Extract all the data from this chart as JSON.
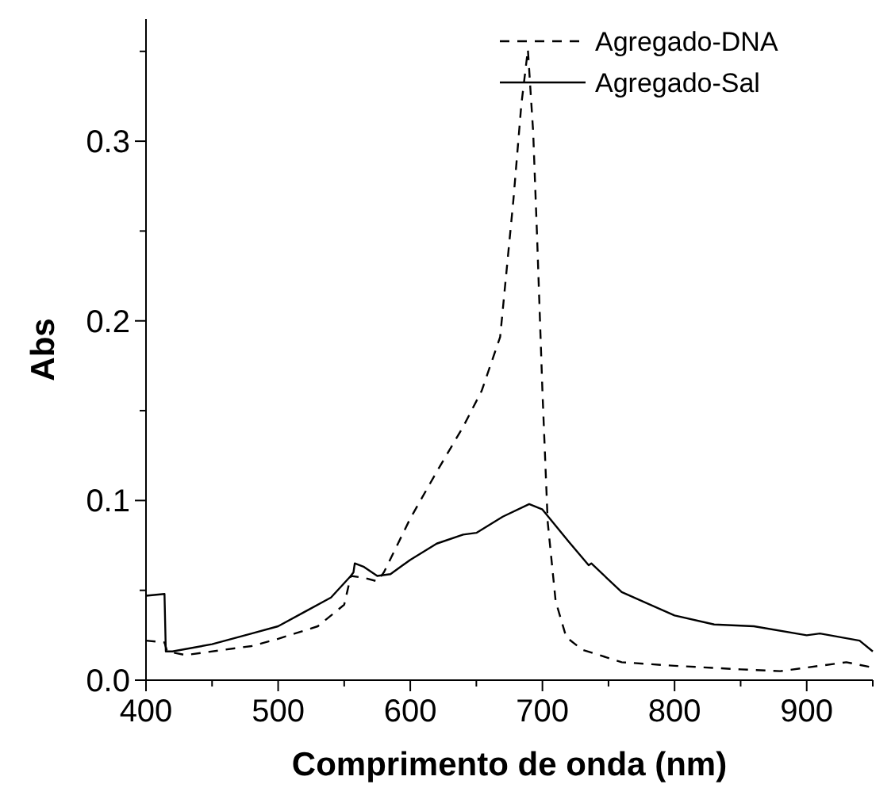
{
  "chart_data": {
    "type": "line",
    "xlabel": "Comprimento de onda (nm)",
    "ylabel": "Abs",
    "xlim": [
      400,
      950
    ],
    "ylim": [
      0,
      0.368
    ],
    "xticks": [
      400,
      {
        "value": 450,
        "label": null
      },
      500,
      {
        "value": 550,
        "label": null
      },
      600,
      {
        "value": 650,
        "label": null
      },
      700,
      {
        "value": 750,
        "label": null
      },
      800,
      {
        "value": 850,
        "label": null
      },
      900,
      {
        "value": 950,
        "label": null
      }
    ],
    "yticks": [
      "0.0",
      {
        "value": 0.05,
        "label": null
      },
      {
        "value": 0.1,
        "label": "0.1"
      },
      {
        "value": 0.15,
        "label": null
      },
      {
        "value": 0.2,
        "label": "0.2"
      },
      {
        "value": 0.25,
        "label": null
      },
      {
        "value": 0.3,
        "label": "0.3"
      },
      {
        "value": 0.35,
        "label": null
      }
    ],
    "legend": "top right",
    "grid": false,
    "series": [
      {
        "name": "Agregado-DNA",
        "color": "#000000",
        "line_style": "dashed",
        "x": [
          400,
          414,
          416,
          430,
          480,
          500,
          530,
          550,
          555,
          565,
          575,
          580,
          600,
          620,
          640,
          654,
          668,
          678,
          684,
          689,
          693,
          696,
          700,
          704,
          710,
          718,
          730,
          760,
          800,
          850,
          880,
          900,
          930,
          950
        ],
        "values": [
          0.022,
          0.021,
          0.016,
          0.014,
          0.019,
          0.023,
          0.03,
          0.042,
          0.058,
          0.057,
          0.055,
          0.06,
          0.09,
          0.116,
          0.141,
          0.161,
          0.191,
          0.267,
          0.32,
          0.351,
          0.305,
          0.246,
          0.161,
          0.088,
          0.044,
          0.024,
          0.017,
          0.01,
          0.008,
          0.006,
          0.005,
          0.007,
          0.01,
          0.007
        ]
      },
      {
        "name": "Agregado-Sal",
        "color": "#000000",
        "line_style": "solid",
        "x": [
          400,
          414,
          415,
          420,
          450,
          480,
          500,
          520,
          540,
          555,
          557,
          558,
          565,
          575,
          585,
          600,
          620,
          640,
          650,
          670,
          690,
          700,
          720,
          735,
          737,
          760,
          800,
          830,
          860,
          900,
          910,
          940,
          950
        ],
        "values": [
          0.047,
          0.048,
          0.016,
          0.016,
          0.02,
          0.026,
          0.03,
          0.038,
          0.046,
          0.058,
          0.06,
          0.065,
          0.063,
          0.058,
          0.059,
          0.067,
          0.076,
          0.081,
          0.082,
          0.091,
          0.098,
          0.095,
          0.077,
          0.064,
          0.065,
          0.049,
          0.036,
          0.031,
          0.03,
          0.025,
          0.026,
          0.022,
          0.016
        ]
      }
    ]
  }
}
